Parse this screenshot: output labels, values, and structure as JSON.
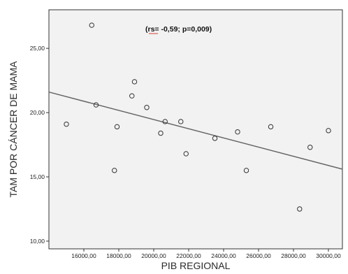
{
  "chart_data": {
    "type": "scatter",
    "title": "",
    "xlabel": "PIB REGIONAL",
    "ylabel": "TAM POR CÁNCER DE MAMA",
    "xlim": [
      14000,
      30800
    ],
    "ylim": [
      9.4,
      28.0
    ],
    "x_ticks": [
      16000,
      18000,
      20000,
      22000,
      24000,
      26000,
      28000,
      30000
    ],
    "x_tick_labels": [
      "16000,00",
      "18000,00",
      "20000,00",
      "22000,00",
      "24000,00",
      "26000,00",
      "28000,00",
      "30000,00"
    ],
    "y_ticks": [
      10,
      15,
      20,
      25
    ],
    "y_tick_labels": [
      "10,00",
      "15,00",
      "20,00",
      "25,00"
    ],
    "grid": false,
    "annotation": "(rs= -0,59;  p=0,009)",
    "points": [
      {
        "x": 15000,
        "y": 19.1
      },
      {
        "x": 16450,
        "y": 26.8
      },
      {
        "x": 16700,
        "y": 20.6
      },
      {
        "x": 17750,
        "y": 15.5
      },
      {
        "x": 17900,
        "y": 18.9
      },
      {
        "x": 18750,
        "y": 21.3
      },
      {
        "x": 18900,
        "y": 22.4
      },
      {
        "x": 19600,
        "y": 20.4
      },
      {
        "x": 20400,
        "y": 18.4
      },
      {
        "x": 20650,
        "y": 19.3
      },
      {
        "x": 21550,
        "y": 19.3
      },
      {
        "x": 21850,
        "y": 16.8
      },
      {
        "x": 23500,
        "y": 18.0
      },
      {
        "x": 24800,
        "y": 18.5
      },
      {
        "x": 25300,
        "y": 15.5
      },
      {
        "x": 26700,
        "y": 18.9
      },
      {
        "x": 28350,
        "y": 12.5
      },
      {
        "x": 28950,
        "y": 17.3
      },
      {
        "x": 30000,
        "y": 18.6
      }
    ],
    "fit_line": {
      "x": [
        14000,
        30800
      ],
      "y": [
        21.6,
        15.6
      ]
    },
    "colors": {
      "background": "#f2f2f2",
      "axis": "#333333",
      "point_stroke": "#333333",
      "line": "#666666",
      "annotation_mark": "#d04030"
    }
  }
}
